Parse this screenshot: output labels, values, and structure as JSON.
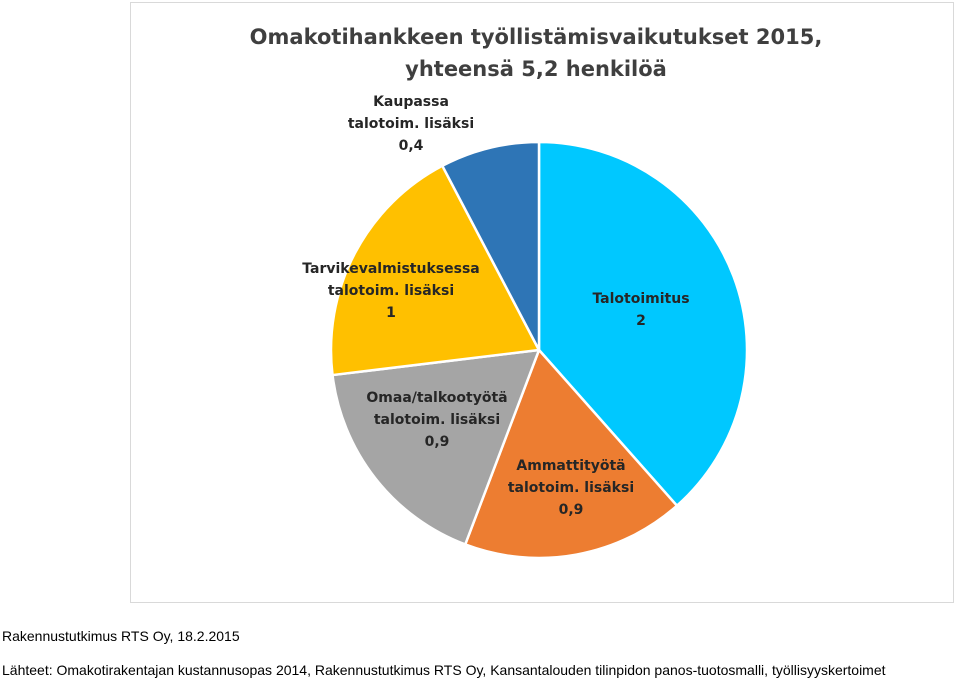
{
  "chart_data": {
    "type": "pie",
    "title_lines": [
      "Omakotihankkeen työllistämisvaikutukset 2015,",
      "yhteensä 5,2 henkilöä"
    ],
    "slices": [
      {
        "label_lines": [
          "Talotoimitus",
          "2"
        ],
        "value": 2,
        "color": "#00c8ff"
      },
      {
        "label_lines": [
          "Ammattityötä",
          "talotoim. lisäksi",
          "0,9"
        ],
        "value": 0.9,
        "color": "#ed7d31"
      },
      {
        "label_lines": [
          "Omaa/talkootyötä",
          "talotoim. lisäksi",
          "0,9"
        ],
        "value": 0.9,
        "color": "#a5a5a5"
      },
      {
        "label_lines": [
          "Tarvikevalmistuksessa",
          "talotoim. lisäksi",
          "1"
        ],
        "value": 1,
        "color": "#ffc000"
      },
      {
        "label_lines": [
          "Kaupassa",
          "talotoim. lisäksi",
          "0,4"
        ],
        "value": 0.4,
        "color": "#2e75b6"
      }
    ]
  },
  "footer": {
    "source_line": "Rakennustutkimus RTS Oy, 18.2.2015",
    "references_line": "Lähteet: Omakotirakentajan kustannusopas 2014, Rakennustutkimus RTS Oy, Kansantalouden tilinpidon panos-tuotosmalli, työllisyyskertoimet"
  }
}
